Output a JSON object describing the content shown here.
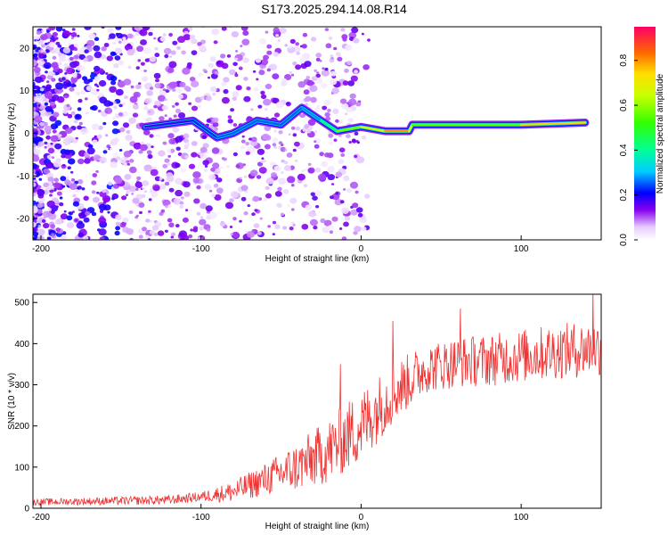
{
  "figure_title": "S173.2025.294.14.08.R14",
  "chart_data": [
    {
      "type": "heatmap",
      "xlabel": "Height of straight line (km)",
      "ylabel": "Frequency (Hz)",
      "xlim": [
        -205,
        150
      ],
      "ylim": [
        -25,
        25
      ],
      "xticks": [
        -200,
        -100,
        0,
        100
      ],
      "xtick_labels": [
        "-200",
        "-100",
        "0",
        "100"
      ],
      "yticks": [
        -20,
        -10,
        0,
        10,
        20
      ],
      "ytick_labels": [
        "-20",
        "-10",
        "0",
        "10",
        "20"
      ],
      "colorbar": {
        "label": "Normalized spectral amplitude",
        "range": [
          0,
          0.95
        ],
        "ticks": [
          0.0,
          0.2,
          0.4,
          0.6,
          0.8
        ],
        "tick_labels": [
          "0.0",
          "0.2",
          "0.4",
          "0.6",
          "0.8"
        ]
      },
      "ridge": [
        {
          "x": -135,
          "freq": 1.5,
          "amp": 0.15
        },
        {
          "x": -105,
          "freq": 3,
          "amp": 0.2
        },
        {
          "x": -90,
          "freq": -1,
          "amp": 0.25
        },
        {
          "x": -80,
          "freq": 0,
          "amp": 0.25
        },
        {
          "x": -65,
          "freq": 3,
          "amp": 0.25
        },
        {
          "x": -50,
          "freq": 2,
          "amp": 0.25
        },
        {
          "x": -37,
          "freq": 6,
          "amp": 0.25
        },
        {
          "x": -25,
          "freq": 3,
          "amp": 0.3
        },
        {
          "x": -15,
          "freq": 0.5,
          "amp": 0.55
        },
        {
          "x": 0,
          "freq": 1.5,
          "amp": 0.6
        },
        {
          "x": 15,
          "freq": 0.5,
          "amp": 0.75
        },
        {
          "x": 30,
          "freq": 0.5,
          "amp": 0.85
        },
        {
          "x": 32,
          "freq": 2,
          "amp": 0.5
        },
        {
          "x": 60,
          "freq": 2,
          "amp": 0.6
        },
        {
          "x": 90,
          "freq": 2,
          "amp": 0.5
        },
        {
          "x": 100,
          "freq": 2,
          "amp": 0.6
        },
        {
          "x": 140,
          "freq": 2.5,
          "amp": 0.9
        }
      ]
    },
    {
      "type": "line",
      "series_name": "SNR",
      "xlabel": "Height of straight line (km)",
      "ylabel": "SNR (10 * v/v)",
      "xlim": [
        -205,
        150
      ],
      "ylim": [
        0,
        520
      ],
      "xticks": [
        -200,
        -100,
        0,
        100
      ],
      "xtick_labels": [
        "-200",
        "-100",
        "0",
        "100"
      ],
      "yticks": [
        0,
        100,
        200,
        300,
        400,
        500
      ],
      "ytick_labels": [
        "0",
        "100",
        "200",
        "300",
        "400",
        "500"
      ],
      "color": "#ee3333",
      "trend_x": [
        -205,
        -150,
        -120,
        -100,
        -80,
        -60,
        -40,
        -20,
        0,
        20,
        40,
        60,
        80,
        100,
        120,
        150
      ],
      "trend_y": [
        15,
        18,
        20,
        28,
        40,
        70,
        100,
        140,
        200,
        280,
        340,
        355,
        360,
        370,
        380,
        390
      ],
      "noise_x": [
        -205,
        -100,
        -60,
        -20,
        0,
        40,
        150
      ],
      "noise_amp": [
        8,
        12,
        40,
        80,
        90,
        60,
        70
      ],
      "spikes": [
        {
          "x": -13,
          "y": 350
        },
        {
          "x": 20,
          "y": 455
        },
        {
          "x": 62,
          "y": 485
        },
        {
          "x": 145,
          "y": 525
        }
      ]
    }
  ]
}
